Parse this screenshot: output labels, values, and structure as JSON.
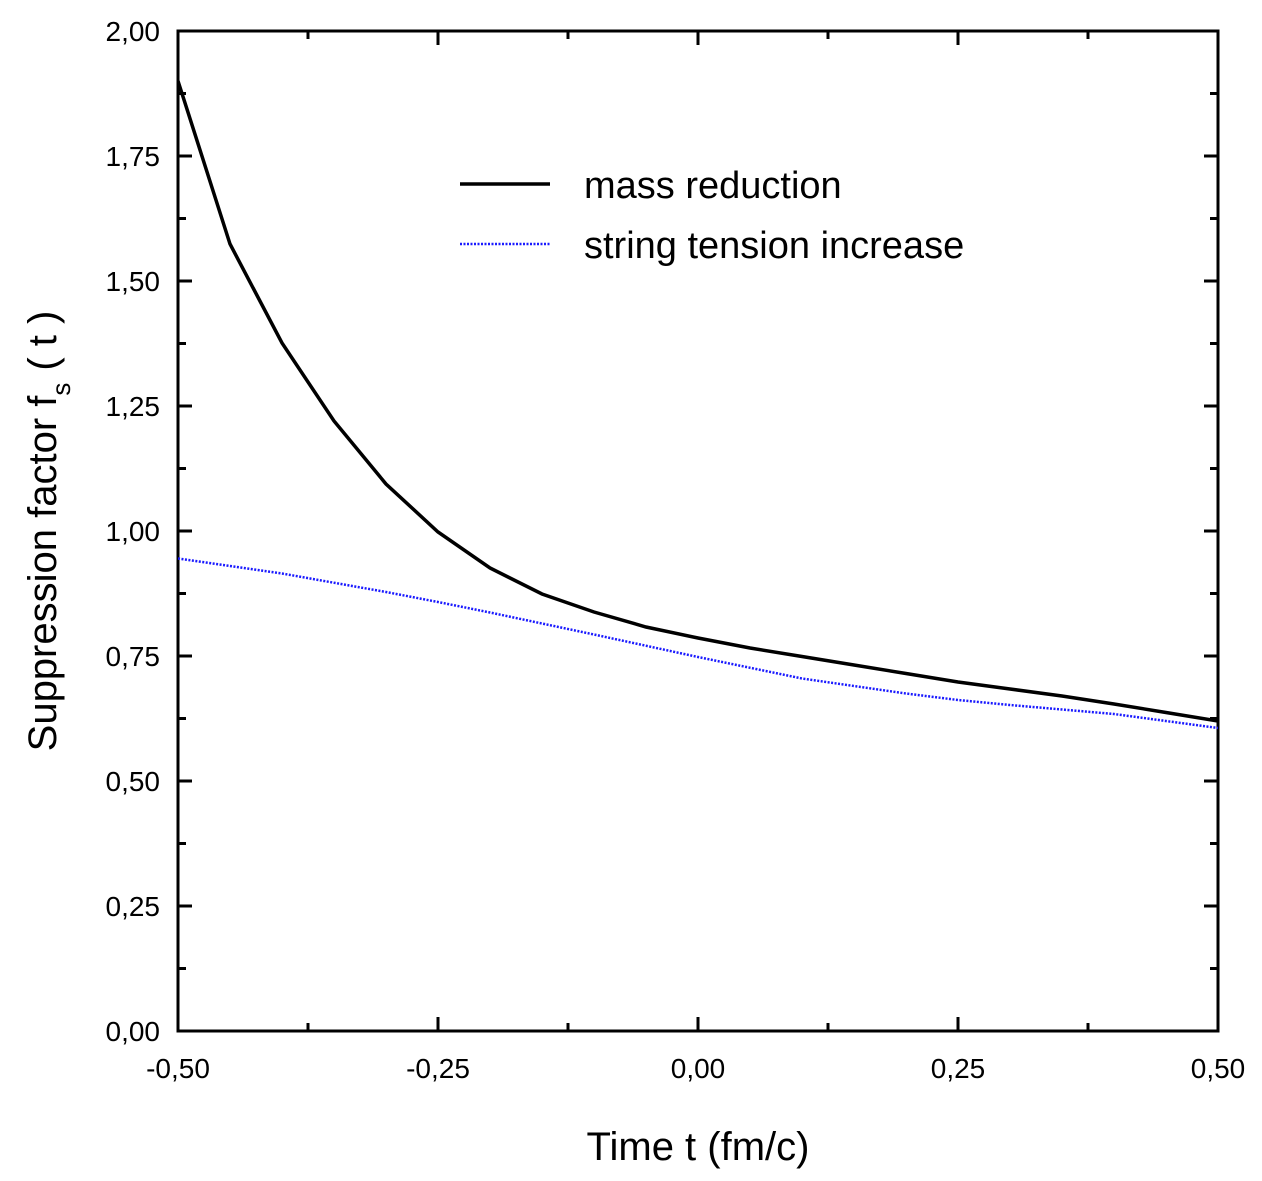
{
  "chart_data": {
    "type": "line",
    "xlabel": "Time t (fm/c)",
    "ylabel": {
      "text": "Suppression factor  f",
      "subscript": "s",
      "suffix": "( t )"
    },
    "xlim": [
      -0.5,
      0.5
    ],
    "ylim": [
      0,
      2
    ],
    "xticks": [
      {
        "value": -0.5,
        "label": "-0,50"
      },
      {
        "value": -0.25,
        "label": "-0,25"
      },
      {
        "value": 0,
        "label": "0,00"
      },
      {
        "value": 0.25,
        "label": "0,25"
      },
      {
        "value": 0.5,
        "label": "0,50"
      }
    ],
    "yticks": [
      {
        "value": 0,
        "label": "0,00"
      },
      {
        "value": 0.25,
        "label": "0,25"
      },
      {
        "value": 0.5,
        "label": "0,50"
      },
      {
        "value": 0.75,
        "label": "0,75"
      },
      {
        "value": 1,
        "label": "1,00"
      },
      {
        "value": 1.25,
        "label": "1,25"
      },
      {
        "value": 1.5,
        "label": "1,50"
      },
      {
        "value": 1.75,
        "label": "1,75"
      },
      {
        "value": 2,
        "label": "2,00"
      }
    ],
    "legend": "upper-center",
    "series": [
      {
        "name": "mass reduction",
        "color": "#000000",
        "dash": "solid",
        "x": [
          -0.5,
          -0.45,
          -0.4,
          -0.35,
          -0.3,
          -0.25,
          -0.2,
          -0.15,
          -0.1,
          -0.05,
          0,
          0.05,
          0.1,
          0.15,
          0.2,
          0.25,
          0.3,
          0.35,
          0.4,
          0.45,
          0.5
        ],
        "values": [
          1.9,
          1.574,
          1.376,
          1.22,
          1.094,
          0.998,
          0.926,
          0.874,
          0.838,
          0.808,
          0.786,
          0.766,
          0.749,
          0.732,
          0.715,
          0.698,
          0.684,
          0.67,
          0.654,
          0.637,
          0.62
        ]
      },
      {
        "name": "string tension increase",
        "color": "#1a1aff",
        "dash": "dotted",
        "x": [
          -0.5,
          -0.4,
          -0.3,
          -0.25,
          -0.2,
          -0.1,
          0,
          0.1,
          0.2,
          0.25,
          0.3,
          0.4,
          0.5
        ],
        "values": [
          0.945,
          0.915,
          0.878,
          0.858,
          0.837,
          0.793,
          0.748,
          0.705,
          0.675,
          0.662,
          0.652,
          0.634,
          0.606
        ]
      }
    ]
  }
}
